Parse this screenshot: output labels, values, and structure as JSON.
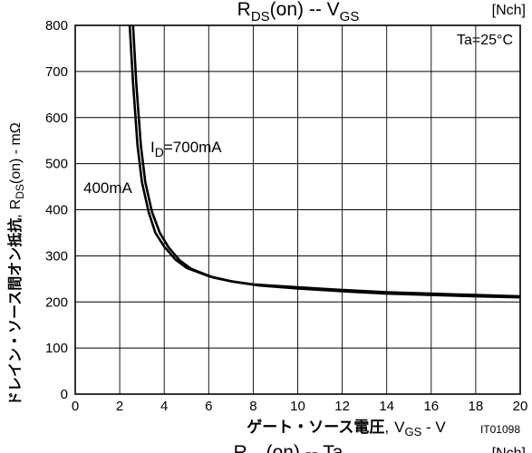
{
  "chart_data": {
    "type": "line",
    "title_main": "R",
    "title_sub": "DS",
    "title_rest": "(on)  --  V",
    "title_sub2": "GS",
    "channel": "[Nch]",
    "condition": "Ta=25°C",
    "xlabel_jp": "ゲート・ソース電圧",
    "xlabel_comma": ",",
    "xlabel_v": "V",
    "xlabel_sub": "GS",
    "xlabel_unit": " - V",
    "ylabel_jp": "ドレイン・ソース間オン抵抗",
    "ylabel_comma": ",",
    "ylabel_r": "R",
    "ylabel_sub": "DS",
    "ylabel_unit": "(on) - mΩ",
    "figure_code": "IT01098",
    "footer_main": "R",
    "footer_sub": "DS",
    "footer_rest": "(on)  --  Ta",
    "footer_channel": "[Nch]",
    "xlim": [
      0,
      20
    ],
    "ylim": [
      0,
      800
    ],
    "x_ticks": [
      "0",
      "2",
      "4",
      "6",
      "8",
      "10",
      "12",
      "14",
      "16",
      "18",
      "20"
    ],
    "y_ticks": [
      "0",
      "100",
      "200",
      "300",
      "400",
      "500",
      "600",
      "700",
      "800"
    ],
    "grid": true,
    "series": [
      {
        "name": "I_D=700mA",
        "label_main": "I",
        "label_sub": "D",
        "label_rest": "=700mA",
        "x": [
          2.45,
          2.6,
          2.8,
          3.0,
          3.3,
          3.6,
          4.0,
          4.5,
          5.0,
          6.0,
          7.0,
          8.0,
          10.0,
          12.0,
          14.0,
          16.0,
          18.0,
          20.0
        ],
        "y": [
          800,
          675,
          540,
          460,
          395,
          350,
          320,
          292,
          274,
          256,
          245,
          238,
          232,
          226,
          221,
          218,
          215,
          212
        ]
      },
      {
        "name": "400mA",
        "label": "400mA",
        "x": [
          2.6,
          2.75,
          2.95,
          3.15,
          3.45,
          3.8,
          4.2,
          4.7,
          5.2,
          6.2,
          7.2,
          8.2,
          10.0,
          12.0,
          14.0,
          16.0,
          18.0,
          20.0
        ],
        "y": [
          800,
          670,
          540,
          460,
          395,
          350,
          318,
          290,
          272,
          253,
          243,
          236,
          229,
          223,
          218,
          215,
          212,
          210
        ]
      }
    ]
  }
}
